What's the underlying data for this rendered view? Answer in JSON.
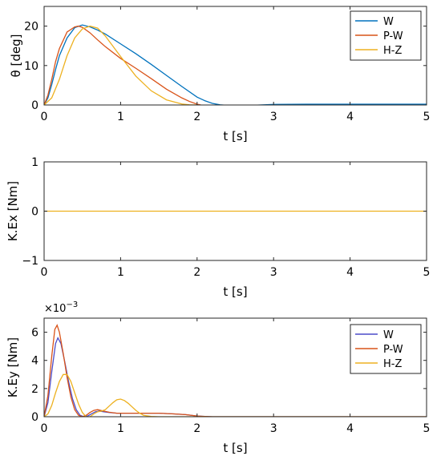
{
  "chart_data": [
    {
      "type": "line",
      "xlabel": "t [s]",
      "ylabel": "θ [deg]",
      "xlim": [
        0,
        5
      ],
      "ylim": [
        0,
        25
      ],
      "xticks": [
        "0",
        "1",
        "2",
        "3",
        "4",
        "5"
      ],
      "yticks": [
        "0",
        "10",
        "20"
      ],
      "grid": false,
      "legend_position": "top-right",
      "series": [
        {
          "name": "W",
          "color": "#0072BD",
          "x": [
            0,
            0.05,
            0.1,
            0.15,
            0.2,
            0.3,
            0.4,
            0.5,
            0.6,
            0.7,
            0.8,
            1.0,
            1.2,
            1.4,
            1.6,
            1.8,
            2.0,
            2.1,
            2.2,
            2.3,
            2.4,
            2.5,
            2.7,
            3.0,
            3.5,
            4.0,
            4.5,
            5.0
          ],
          "y": [
            0,
            1.8,
            5.2,
            9.0,
            12.5,
            17.0,
            19.6,
            20.3,
            19.8,
            19.0,
            18.0,
            15.5,
            13.0,
            10.3,
            7.5,
            4.7,
            2.0,
            1.1,
            0.4,
            0.05,
            -0.1,
            -0.15,
            -0.1,
            0.15,
            0.2,
            0.2,
            0.2,
            0.2
          ]
        },
        {
          "name": "P-W",
          "color": "#D95319",
          "x": [
            0,
            0.05,
            0.1,
            0.15,
            0.2,
            0.3,
            0.4,
            0.45,
            0.5,
            0.6,
            0.7,
            0.8,
            1.0,
            1.2,
            1.4,
            1.6,
            1.8,
            1.9,
            2.0,
            2.05
          ],
          "y": [
            0,
            2.5,
            6.5,
            11.0,
            14.3,
            18.5,
            19.8,
            20.0,
            19.7,
            18.3,
            16.5,
            14.8,
            11.8,
            9.3,
            6.7,
            4.0,
            1.8,
            0.9,
            0.2,
            0
          ]
        },
        {
          "name": "H-Z",
          "color": "#EDB120",
          "x": [
            0,
            0.1,
            0.2,
            0.3,
            0.4,
            0.5,
            0.6,
            0.7,
            0.8,
            1.0,
            1.2,
            1.4,
            1.6,
            1.8,
            1.9,
            2.0
          ],
          "y": [
            0,
            1.8,
            6.5,
            12.5,
            17.0,
            19.3,
            20.0,
            19.5,
            17.5,
            12.3,
            7.3,
            3.6,
            1.3,
            0.25,
            0.05,
            0
          ]
        }
      ]
    },
    {
      "type": "line",
      "xlabel": "t [s]",
      "ylabel": "K.Ex [Nm]",
      "xlim": [
        0,
        5
      ],
      "ylim": [
        -1,
        1
      ],
      "xticks": [
        "0",
        "1",
        "2",
        "3",
        "4",
        "5"
      ],
      "yticks": [
        "−1",
        "0",
        "1"
      ],
      "grid": false,
      "series": [
        {
          "color": "#EDB120",
          "x": [
            0,
            5
          ],
          "y": [
            0,
            0
          ]
        }
      ]
    },
    {
      "type": "line",
      "xlabel": "t [s]",
      "ylabel": "K.Ey [Nm]",
      "xlim": [
        0,
        5
      ],
      "ylim": [
        0,
        7
      ],
      "xticks": [
        "0",
        "1",
        "2",
        "3",
        "4",
        "5"
      ],
      "yticks": [
        "0",
        "2",
        "4",
        "6"
      ],
      "y_exponent_base": "×10",
      "y_exponent_power": "−3",
      "grid": false,
      "legend_position": "top-right",
      "series": [
        {
          "name": "W",
          "color": "#4C4CC8",
          "x": [
            0,
            0.05,
            0.1,
            0.15,
            0.18,
            0.22,
            0.27,
            0.32,
            0.37,
            0.42,
            0.47,
            0.52,
            0.57,
            0.62,
            0.67,
            0.72,
            0.78,
            0.85,
            0.95,
            1.1,
            1.3,
            1.5,
            1.7,
            1.85,
            2.0,
            2.1,
            2.2,
            2.5,
            5.0
          ],
          "y": [
            0,
            1.0,
            3.2,
            5.2,
            5.6,
            5.2,
            3.9,
            2.5,
            1.3,
            0.5,
            0.1,
            0.0,
            0.05,
            0.2,
            0.35,
            0.4,
            0.35,
            0.3,
            0.25,
            0.25,
            0.25,
            0.25,
            0.2,
            0.15,
            0.05,
            0.02,
            0,
            0,
            0
          ]
        },
        {
          "name": "P-W",
          "color": "#D95319",
          "x": [
            0,
            0.05,
            0.1,
            0.14,
            0.17,
            0.2,
            0.25,
            0.3,
            0.35,
            0.4,
            0.45,
            0.5,
            0.55,
            0.6,
            0.65,
            0.7,
            0.78,
            0.85,
            0.95,
            1.1,
            1.3,
            1.5,
            1.7,
            1.85,
            2.0,
            2.1,
            2.2,
            2.5,
            5.0
          ],
          "y": [
            0,
            1.5,
            4.3,
            6.2,
            6.5,
            6.0,
            4.5,
            2.8,
            1.4,
            0.5,
            0.1,
            0.0,
            0.1,
            0.3,
            0.45,
            0.5,
            0.4,
            0.32,
            0.25,
            0.25,
            0.25,
            0.25,
            0.2,
            0.15,
            0.05,
            0.02,
            0,
            0,
            0
          ]
        },
        {
          "name": "H-Z",
          "color": "#EDB120",
          "x": [
            0,
            0.05,
            0.1,
            0.15,
            0.2,
            0.25,
            0.3,
            0.35,
            0.4,
            0.45,
            0.5,
            0.55,
            0.6,
            0.65,
            0.7,
            0.75,
            0.8,
            0.85,
            0.9,
            0.95,
            1.0,
            1.05,
            1.1,
            1.15,
            1.2,
            1.25,
            1.3,
            1.4,
            1.5,
            1.6,
            1.7,
            5.0
          ],
          "y": [
            0,
            0.2,
            0.8,
            1.7,
            2.5,
            3.0,
            3.0,
            2.5,
            1.7,
            0.9,
            0.3,
            0.0,
            0.0,
            0.2,
            0.35,
            0.4,
            0.5,
            0.75,
            1.0,
            1.2,
            1.25,
            1.15,
            0.95,
            0.7,
            0.45,
            0.25,
            0.1,
            0.02,
            0,
            0,
            0,
            0
          ]
        }
      ]
    }
  ]
}
